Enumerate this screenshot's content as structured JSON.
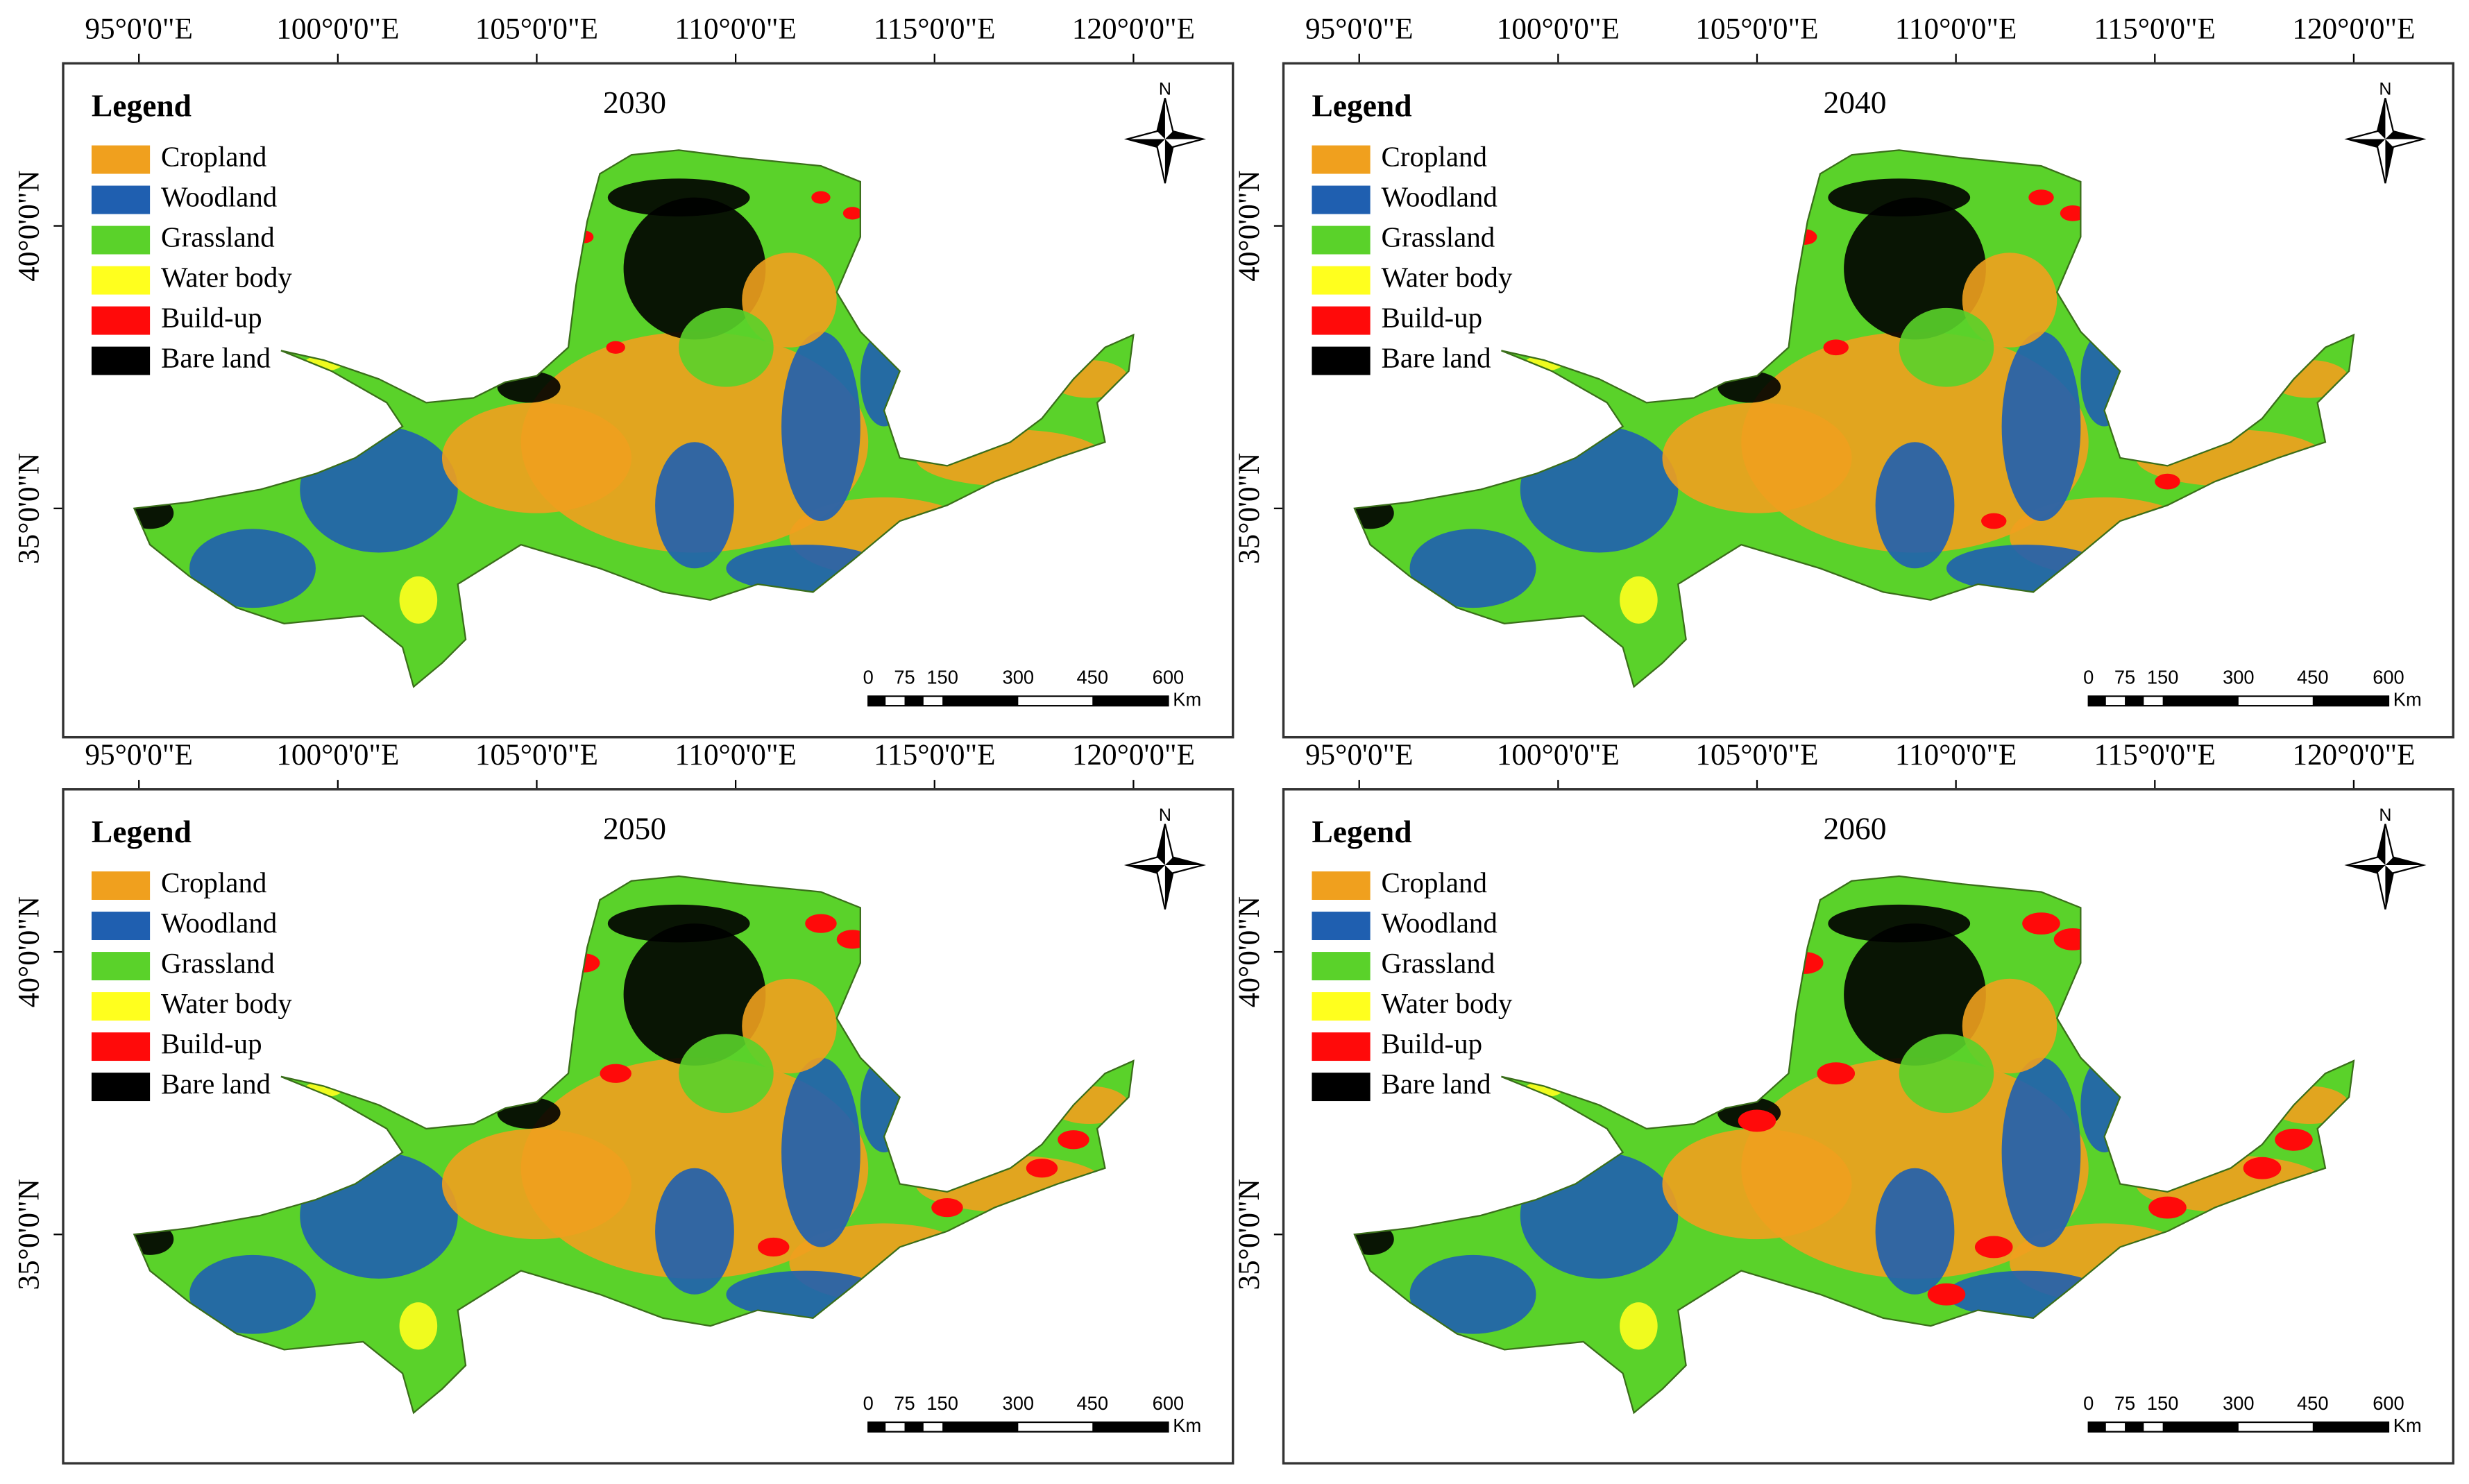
{
  "legend_title": "Legend",
  "legend": [
    "Cropland",
    "Woodland",
    "Grassland",
    "Water body",
    "Build-up",
    "Bare land"
  ],
  "legend_colors": [
    "#f0a01e",
    "#1f5fb0",
    "#5ad22a",
    "#ffff1e",
    "#ff0a0a",
    "#000000"
  ],
  "panels": [
    {
      "year": "2030"
    },
    {
      "year": "2040"
    },
    {
      "year": "2050"
    },
    {
      "year": "2060"
    }
  ],
  "longitude_labels": [
    "95°0'0\"E",
    "100°0'0\"E",
    "105°0'0\"E",
    "110°0'0\"E",
    "115°0'0\"E",
    "120°0'0\"E"
  ],
  "latitude_labels": [
    "40°0'0\"N",
    "35°0'0\"N"
  ],
  "north": "N",
  "scale_bar": {
    "labels": [
      "0",
      "75",
      "150",
      "300",
      "450",
      "600"
    ],
    "unit": "Km"
  }
}
